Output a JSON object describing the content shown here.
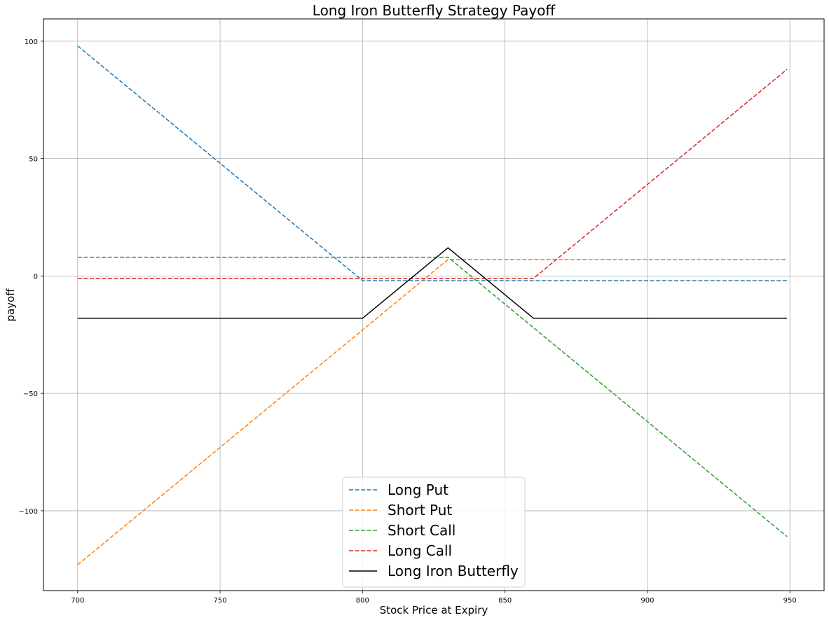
{
  "chart_data": {
    "type": "line",
    "title": "Long Iron Butterfly Strategy Payoff",
    "xlabel": "Stock Price at Expiry",
    "ylabel": "payoff",
    "xlim": [
      688,
      962
    ],
    "ylim": [
      -134,
      109.5
    ],
    "xticks": [
      700,
      750,
      800,
      850,
      900,
      950
    ],
    "yticks": [
      -100,
      -50,
      0,
      50,
      100
    ],
    "ytick_labels": [
      "−100",
      "−50",
      "0",
      "50",
      "100"
    ],
    "grid": true,
    "legend_position": "bottom-center",
    "series": [
      {
        "name": "Long Put",
        "style": "dashed",
        "color": "#1f77b4",
        "x": [
          700,
          800,
          949
        ],
        "y": [
          98,
          -2,
          -2
        ]
      },
      {
        "name": "Short Put",
        "style": "dashed",
        "color": "#ff7f0e",
        "x": [
          700,
          830,
          949
        ],
        "y": [
          -123,
          7,
          7
        ]
      },
      {
        "name": "Short Call",
        "style": "dashed",
        "color": "#2ca02c",
        "x": [
          700,
          830,
          949
        ],
        "y": [
          8,
          8,
          -111
        ]
      },
      {
        "name": "Long Call",
        "style": "dashed",
        "color": "#d62728",
        "x": [
          700,
          860,
          949
        ],
        "y": [
          -1,
          -1,
          88
        ]
      },
      {
        "name": "Long Iron Butterfly",
        "style": "solid",
        "color": "#000000",
        "x": [
          700,
          800,
          830,
          860,
          949
        ],
        "y": [
          -18,
          -18,
          12,
          -18,
          -18
        ]
      }
    ]
  }
}
